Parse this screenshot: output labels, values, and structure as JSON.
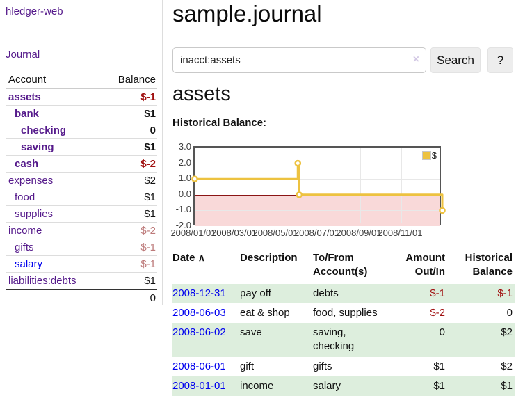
{
  "app": {
    "title": "hledger-web"
  },
  "sidebar": {
    "journal_link": "Journal",
    "table": {
      "account_header": "Account",
      "balance_header": "Balance",
      "rows": [
        {
          "account": "assets",
          "depth": 1,
          "style": "bold",
          "balance": "$-1",
          "balance_style": "neg-strong"
        },
        {
          "account": "bank",
          "depth": 2,
          "style": "bold",
          "balance": "$1",
          "balance_style": "strong"
        },
        {
          "account": "checking",
          "depth": 3,
          "style": "bold",
          "balance": "0",
          "balance_style": "strong"
        },
        {
          "account": "saving",
          "depth": 3,
          "style": "bold",
          "balance": "$1",
          "balance_style": "strong"
        },
        {
          "account": "cash",
          "depth": 2,
          "style": "bold",
          "balance": "$-2",
          "balance_style": "neg-strong"
        },
        {
          "account": "expenses",
          "depth": 1,
          "style": "normal",
          "balance": "$2",
          "balance_style": "plain"
        },
        {
          "account": "food",
          "depth": 2,
          "style": "normal",
          "balance": "$1",
          "balance_style": "plain"
        },
        {
          "account": "supplies",
          "depth": 2,
          "style": "normal",
          "balance": "$1",
          "balance_style": "plain"
        },
        {
          "account": "income",
          "depth": 1,
          "style": "normal",
          "balance": "$-2",
          "balance_style": "rose"
        },
        {
          "account": "gifts",
          "depth": 2,
          "style": "normal",
          "balance": "$-1",
          "balance_style": "rose"
        },
        {
          "account": "salary",
          "depth": 2,
          "style": "blue",
          "balance": "$-1",
          "balance_style": "rose"
        },
        {
          "account": "liabilities:debts",
          "depth": 1,
          "style": "normal",
          "balance": "$1",
          "balance_style": "plain"
        }
      ],
      "total": "0"
    }
  },
  "header": {
    "title": "sample.journal"
  },
  "search": {
    "value": "inacct:assets",
    "clear_icon": "×",
    "button_label": "Search",
    "help_label": "?"
  },
  "account_page": {
    "title": "assets",
    "chart_heading": "Historical Balance:"
  },
  "chart_data": {
    "type": "line",
    "step": true,
    "title": "Historical Balance:",
    "series": [
      {
        "name": "$",
        "color": "#edc240",
        "points": [
          [
            "2008/01/01",
            1.0
          ],
          [
            "2008/06/01",
            2.0
          ],
          [
            "2008/06/03",
            0.0
          ],
          [
            "2008/12/31",
            -1.0
          ]
        ]
      }
    ],
    "x_range": [
      "2008/01/01",
      "2008/12/31"
    ],
    "x_ticks": [
      "2008/01/01",
      "2008/03/01",
      "2008/05/01",
      "2008/07/01",
      "2008/09/01",
      "2008/11/01"
    ],
    "y_ticks": [
      "3.0",
      "2.0",
      "1.0",
      "0.0",
      "-1.0",
      "-2.0"
    ],
    "ylim": [
      -2,
      3
    ],
    "grid": true,
    "negative_region_color": "#f9d9d9",
    "zero_line_color": "#8b1515",
    "legend_position": "top-right"
  },
  "register": {
    "columns": [
      {
        "label": "Date",
        "sort_indicator": "∧"
      },
      {
        "label": "Description"
      },
      {
        "label": "To/From Account(s)"
      },
      {
        "label": "Amount Out/In"
      },
      {
        "label": "Historical Balance"
      }
    ],
    "rows": [
      {
        "date": "2008-12-31",
        "description": "pay off",
        "accounts": "debts",
        "amount": "$-1",
        "amount_negative": true,
        "balance": "$-1",
        "balance_negative": true,
        "highlighted": true
      },
      {
        "date": "2008-06-03",
        "description": "eat & shop",
        "accounts": "food, supplies",
        "amount": "$-2",
        "amount_negative": true,
        "balance": "0",
        "balance_negative": false,
        "highlighted": false
      },
      {
        "date": "2008-06-02",
        "description": "save",
        "accounts": "saving, checking",
        "amount": "0",
        "amount_negative": false,
        "balance": "$2",
        "balance_negative": false,
        "highlighted": true
      },
      {
        "date": "2008-06-01",
        "description": "gift",
        "accounts": "gifts",
        "amount": "$1",
        "amount_negative": false,
        "balance": "$2",
        "balance_negative": false,
        "highlighted": false
      },
      {
        "date": "2008-01-01",
        "description": "income",
        "accounts": "salary",
        "amount": "$1",
        "amount_negative": false,
        "balance": "$1",
        "balance_negative": false,
        "highlighted": true
      }
    ]
  }
}
